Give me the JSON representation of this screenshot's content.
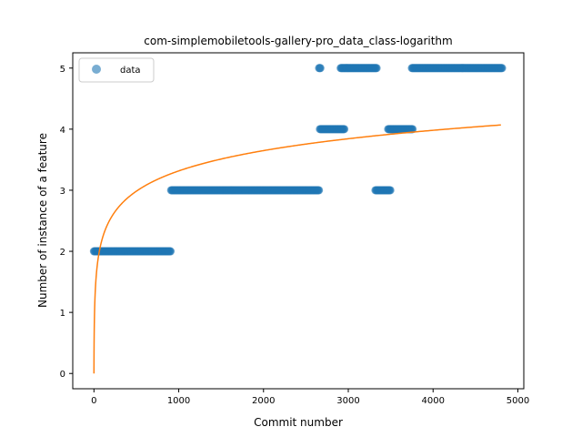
{
  "chart_data": {
    "type": "scatter",
    "title": "com-simplemobiletools-gallery-pro_data_class-logarithm",
    "xlabel": "Commit number",
    "ylabel": "Number of instance of a feature",
    "xlim": [
      -250,
      5070
    ],
    "ylim": [
      -0.25,
      5.25
    ],
    "xticks": [
      0,
      1000,
      2000,
      3000,
      4000,
      5000
    ],
    "yticks": [
      0,
      1,
      2,
      3,
      4,
      5
    ],
    "grid": false,
    "legend_position": "upper-left",
    "series": [
      {
        "name": "data",
        "kind": "scatter",
        "color": "#1f77b4",
        "alpha": 0.6,
        "segments": [
          {
            "x_start": 0,
            "x_end": 910,
            "y": 2
          },
          {
            "x_start": 910,
            "x_end": 2660,
            "y": 3
          },
          {
            "x_start": 2655,
            "x_end": 2675,
            "y": 5
          },
          {
            "x_start": 2665,
            "x_end": 2960,
            "y": 4
          },
          {
            "x_start": 2910,
            "x_end": 3340,
            "y": 5
          },
          {
            "x_start": 3320,
            "x_end": 3500,
            "y": 3
          },
          {
            "x_start": 3470,
            "x_end": 3760,
            "y": 4
          },
          {
            "x_start": 3750,
            "x_end": 4820,
            "y": 5
          }
        ]
      },
      {
        "name": "",
        "kind": "line",
        "color": "#ff7f0e",
        "model": "y = a + b*ln(x+1)",
        "a": 0.0,
        "b": 0.48,
        "x_range": [
          0,
          4800
        ]
      }
    ]
  }
}
